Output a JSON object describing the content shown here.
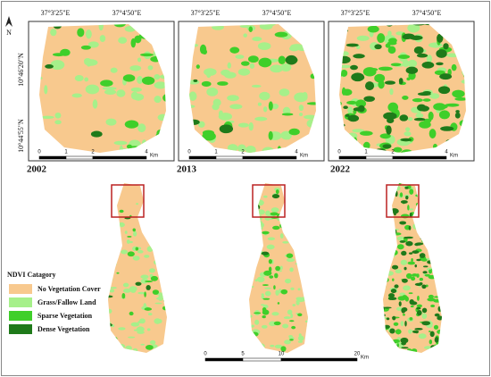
{
  "north_arrow": "N",
  "latitude_labels": [
    "10°46'20\"N",
    "10°44'55\"N"
  ],
  "panels": [
    {
      "year": "2002",
      "longitude_labels": [
        "37°3'25\"E",
        "37°4'50\"E"
      ],
      "scale_labels": [
        "0",
        "1",
        "2",
        "4"
      ],
      "scale_unit": "Km"
    },
    {
      "year": "2013",
      "longitude_labels": [
        "37°3'25\"E",
        "37°4'50\"E"
      ],
      "scale_labels": [
        "0",
        "1",
        "2",
        "4"
      ],
      "scale_unit": "Km"
    },
    {
      "year": "2022",
      "longitude_labels": [
        "37°3'25\"E",
        "37°4'50\"E"
      ],
      "scale_labels": [
        "0",
        "1",
        "2",
        "4"
      ],
      "scale_unit": "Km"
    }
  ],
  "legend": {
    "title": "NDVI Catagory",
    "items": [
      {
        "label": "No Vegetation Cover",
        "color": "#f8c98e"
      },
      {
        "label": "Grass/Fallow Land",
        "color": "#a6f08a"
      },
      {
        "label": "Sparse Vegetation",
        "color": "#3fcf2a"
      },
      {
        "label": "Dense Vegetation",
        "color": "#1f7a1a"
      }
    ]
  },
  "overview_scale": {
    "labels": [
      "0",
      "5",
      "10",
      "20"
    ],
    "unit": "Km"
  }
}
